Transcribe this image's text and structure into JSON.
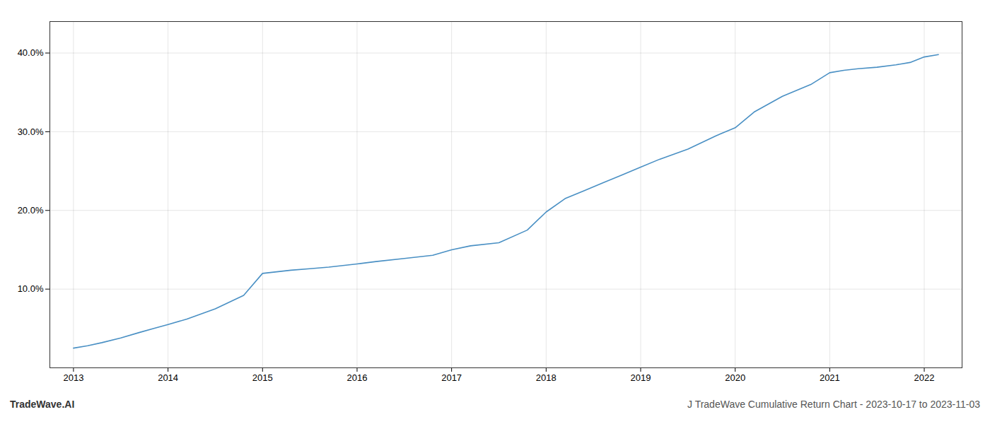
{
  "chart_data": {
    "type": "line",
    "x": [
      2013.0,
      2013.15,
      2013.3,
      2013.5,
      2013.7,
      2013.85,
      2014.0,
      2014.2,
      2014.5,
      2014.8,
      2015.0,
      2015.15,
      2015.3,
      2015.5,
      2015.7,
      2015.85,
      2016.0,
      2016.2,
      2016.5,
      2016.8,
      2017.0,
      2017.2,
      2017.5,
      2017.8,
      2018.0,
      2018.2,
      2018.4,
      2018.6,
      2018.8,
      2019.0,
      2019.2,
      2019.5,
      2019.8,
      2020.0,
      2020.2,
      2020.5,
      2020.8,
      2021.0,
      2021.15,
      2021.3,
      2021.5,
      2021.7,
      2021.85,
      2022.0,
      2022.15
    ],
    "values": [
      2.5,
      2.8,
      3.2,
      3.8,
      4.5,
      5.0,
      5.5,
      6.2,
      7.5,
      9.2,
      12.0,
      12.2,
      12.4,
      12.6,
      12.8,
      13.0,
      13.2,
      13.5,
      13.9,
      14.3,
      15.0,
      15.5,
      15.9,
      17.5,
      19.8,
      21.5,
      22.5,
      23.5,
      24.5,
      25.5,
      26.5,
      27.8,
      29.5,
      30.5,
      32.5,
      34.5,
      36.0,
      37.5,
      37.8,
      38.0,
      38.2,
      38.5,
      38.8,
      39.5,
      39.8
    ],
    "color": "#4a90c4",
    "xlim": [
      2012.75,
      2022.4
    ],
    "xticks": [
      2013,
      2014,
      2015,
      2016,
      2017,
      2018,
      2019,
      2020,
      2021,
      2022
    ],
    "ylim": [
      0,
      44
    ],
    "yticks": [
      {
        "value": 10.0,
        "label": "10.0%"
      },
      {
        "value": 20.0,
        "label": "20.0%"
      },
      {
        "value": 30.0,
        "label": "30.0%"
      },
      {
        "value": 40.0,
        "label": "40.0%"
      }
    ],
    "grid": true,
    "annotations": [
      "TradeWave.AI",
      "J TradeWave Cumulative Return Chart - 2023-10-17 to 2023-11-03"
    ]
  }
}
